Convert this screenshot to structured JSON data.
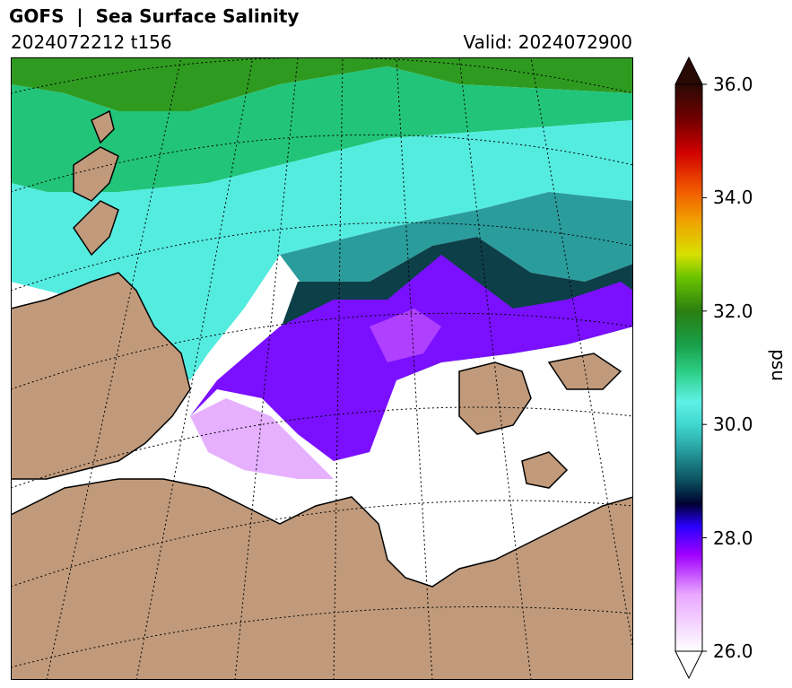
{
  "header": {
    "title": "GOFS  |  Sea Surface Salinity",
    "run": "2024072212 t156",
    "valid": "Valid: 2024072900"
  },
  "colorbar": {
    "label": "psu",
    "ticks": [
      "36.0",
      "34.0",
      "32.0",
      "30.0",
      "28.0",
      "26.0"
    ],
    "min": 26.0,
    "max": 36.0,
    "extend": "both",
    "stops": [
      {
        "value": 26.0,
        "color": "#ffffff"
      },
      {
        "value": 27.0,
        "color": "#e9a7ff"
      },
      {
        "value": 27.7,
        "color": "#a000ff"
      },
      {
        "value": 28.2,
        "color": "#2a00ff"
      },
      {
        "value": 28.6,
        "color": "#000030"
      },
      {
        "value": 29.0,
        "color": "#0a4f5c"
      },
      {
        "value": 29.6,
        "color": "#2aa6a6"
      },
      {
        "value": 30.0,
        "color": "#3fd7cf"
      },
      {
        "value": 30.4,
        "color": "#5ff1e6"
      },
      {
        "value": 30.9,
        "color": "#2fd08a"
      },
      {
        "value": 31.4,
        "color": "#18a04a"
      },
      {
        "value": 32.0,
        "color": "#2a7f10"
      },
      {
        "value": 32.6,
        "color": "#6cc400"
      },
      {
        "value": 33.0,
        "color": "#d8e000"
      },
      {
        "value": 33.6,
        "color": "#f0a000"
      },
      {
        "value": 34.2,
        "color": "#f05000"
      },
      {
        "value": 34.8,
        "color": "#d00000"
      },
      {
        "value": 35.4,
        "color": "#700000"
      },
      {
        "value": 36.0,
        "color": "#2a0a05"
      }
    ]
  },
  "map": {
    "land_color": "#c09a7b",
    "ice_free_low_salinity_color": "#ffffff",
    "gridlines": "dotted"
  }
}
